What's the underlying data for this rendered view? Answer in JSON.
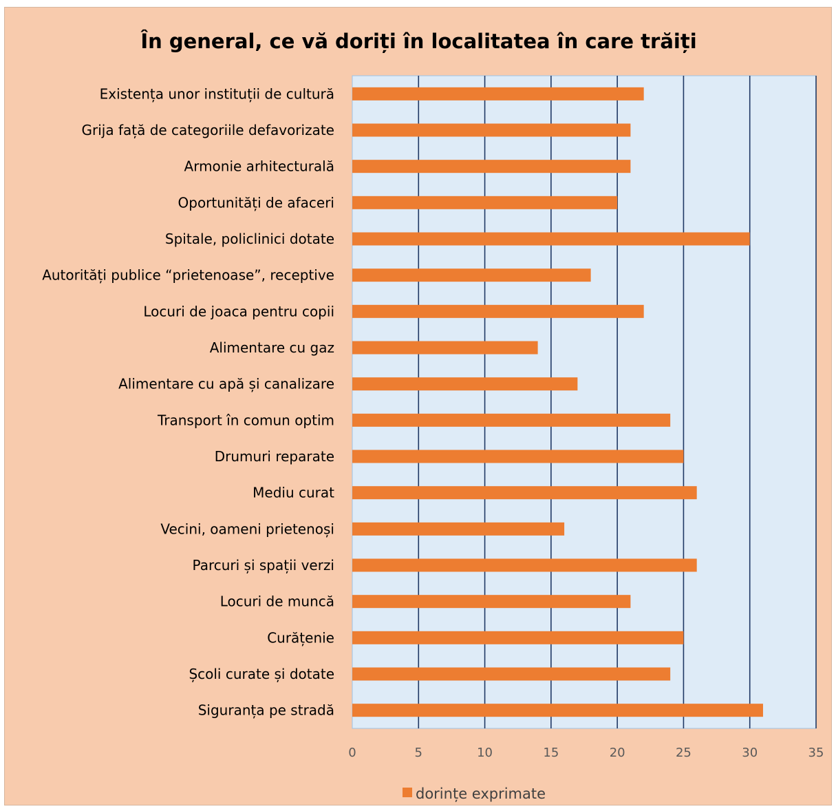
{
  "chart_data": {
    "type": "bar",
    "orientation": "horizontal",
    "title": "În general, ce vă doriți în localitatea în care trăiți",
    "categories": [
      "Existența unor instituții de cultură",
      "Grija față de categoriile defavorizate",
      "Armonie arhitecturală",
      "Oportunități de afaceri",
      "Spitale, policlinici dotate",
      "Autorități publice “prietenoase”, receptive",
      "Locuri de joaca pentru copii",
      "Alimentare cu gaz",
      "Alimentare cu apă și canalizare",
      "Transport în comun optim",
      "Drumuri reparate",
      "Mediu curat",
      "Vecini, oameni prietenoși",
      "Parcuri și spații verzi",
      "Locuri de muncă",
      "Curățenie",
      "Școli curate și dotate",
      "Siguranța pe stradă"
    ],
    "series": [
      {
        "name": "dorințe exprimate",
        "color": "#ed7d31",
        "values": [
          22,
          21,
          21,
          20,
          30,
          18,
          22,
          14,
          17,
          24,
          25,
          26,
          16,
          26,
          21,
          25,
          24,
          31
        ]
      }
    ],
    "xlim": [
      0,
      35
    ],
    "ticks": [
      "0",
      "5",
      "10",
      "15",
      "20",
      "25",
      "30",
      "35"
    ],
    "tick_values": [
      0,
      5,
      10,
      15,
      20,
      25,
      30,
      35
    ],
    "grid": true,
    "legend_position": "bottom",
    "plot_background": "#deebf7",
    "chart_background": "#f8cbad",
    "gridline_color": "#1f3864"
  }
}
